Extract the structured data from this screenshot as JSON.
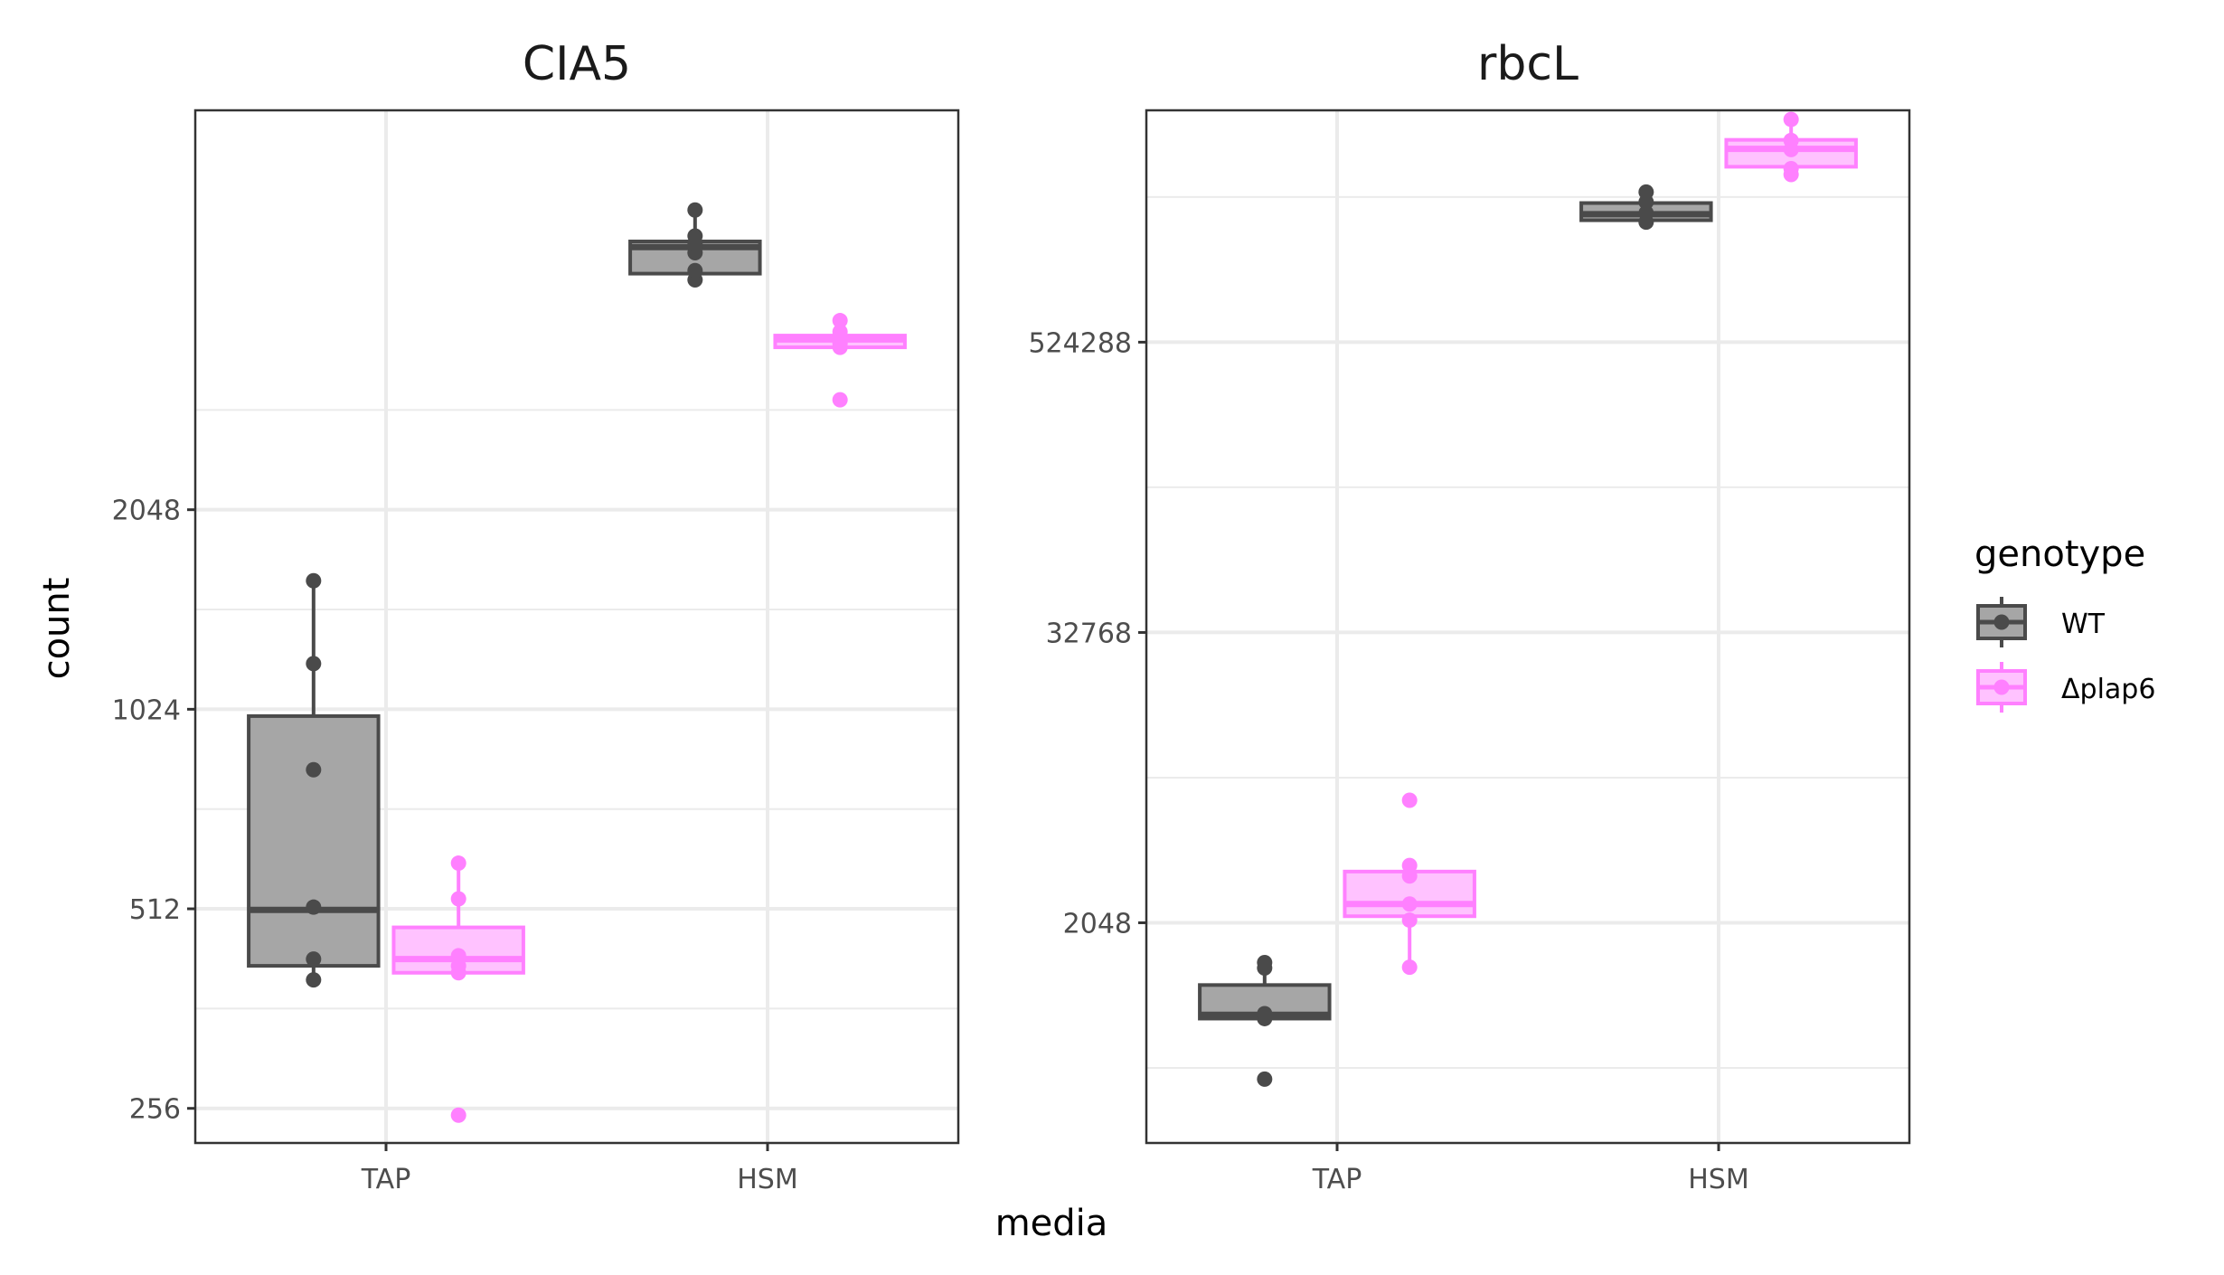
{
  "chart_data": {
    "type": "box",
    "x_title": "media",
    "y_title": "count",
    "y_scale": "log2",
    "legend": {
      "title": "genotype",
      "position": "right",
      "entries": [
        {
          "label": "WT",
          "color": "#4a4a4a",
          "fill": "#a6a6a6"
        },
        {
          "label": "Δplap6",
          "color": "#ff80ff",
          "fill": "#ffc2ff"
        }
      ]
    },
    "grid": true,
    "panels": [
      {
        "title": "CIA5",
        "categories": [
          "TAP",
          "HSM"
        ],
        "y_ticks": [
          256,
          512,
          1024,
          2048
        ],
        "y_tick_labels": [
          "256",
          "512",
          "1024",
          "2048"
        ],
        "ylim": [
          227,
          8200
        ],
        "series": [
          {
            "name": "WT",
            "boxes": [
              {
                "category": "TAP",
                "min": 400,
                "q1": 420,
                "median": 510,
                "q3": 1000,
                "max": 1600,
                "points": [
                  400,
                  430,
                  515,
                  830,
                  1200,
                  1600
                ]
              },
              {
                "category": "HSM",
                "min": 4550,
                "q1": 4650,
                "median": 5100,
                "q3": 5200,
                "max": 5800,
                "points": [
                  4550,
                  4700,
                  5000,
                  5150,
                  5300,
                  5800
                ]
              }
            ]
          },
          {
            "name": "Δplap6",
            "boxes": [
              {
                "category": "TAP",
                "min": 410,
                "q1": 410,
                "median": 430,
                "q3": 480,
                "max": 600,
                "points": [
                  250,
                  410,
                  420,
                  435,
                  530,
                  600
                ]
              },
              {
                "category": "HSM",
                "min": 3550,
                "q1": 3600,
                "median": 3700,
                "q3": 3750,
                "max": 3950,
                "points": [
                  3000,
                  3600,
                  3650,
                  3800,
                  3950
                ]
              }
            ]
          }
        ]
      },
      {
        "title": "rbcL",
        "categories": [
          "TAP",
          "HSM"
        ],
        "y_ticks": [
          2048,
          32768,
          524288
        ],
        "y_tick_labels": [
          "2048",
          "32768",
          "524288"
        ],
        "ylim": [
          250,
          4800000
        ],
        "series": [
          {
            "name": "WT",
            "boxes": [
              {
                "category": "TAP",
                "min": 820,
                "q1": 820,
                "median": 850,
                "q3": 1130,
                "max": 1420,
                "points": [
                  460,
                  820,
                  860,
                  1330,
                  1400
                ]
              },
              {
                "category": "HSM",
                "min": 1680000,
                "q1": 1680000,
                "median": 1780000,
                "q3": 1980000,
                "max": 2200000,
                "points": [
                  1650000,
                  1800000,
                  2000000,
                  2200000
                ]
              }
            ]
          },
          {
            "name": "Δplap6",
            "boxes": [
              {
                "category": "TAP",
                "min": 1340,
                "q1": 2180,
                "median": 2450,
                "q3": 3340,
                "max": 3540,
                "points": [
                  1340,
                  2100,
                  2450,
                  3200,
                  3540,
                  6600
                ]
              },
              {
                "category": "HSM",
                "min": 2600000,
                "q1": 2800000,
                "median": 3320000,
                "q3": 3620000,
                "max": 4400000,
                "points": [
                  2600000,
                  2750000,
                  3300000,
                  3600000,
                  4400000
                ]
              }
            ]
          }
        ]
      }
    ]
  }
}
